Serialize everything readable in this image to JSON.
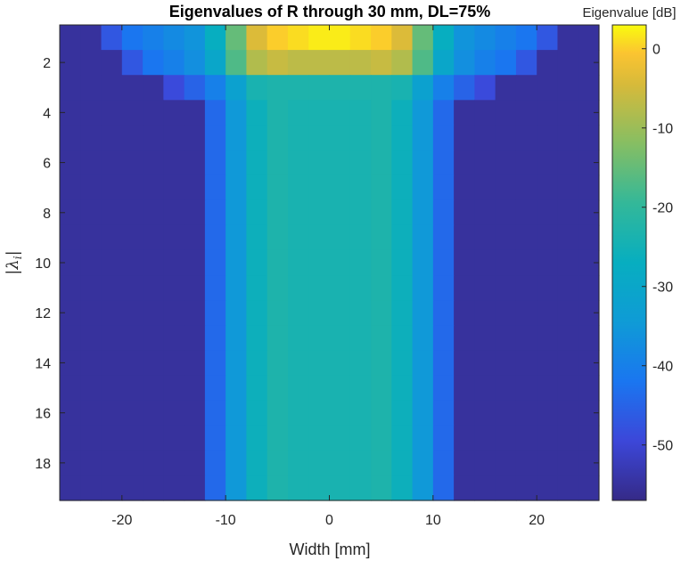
{
  "chart_data": {
    "type": "heatmap",
    "title": "Eigenvalues of R through 30 mm, DL=75%",
    "xlabel": "Width [mm]",
    "ylabel": "|λ_i|",
    "colorbar_label": "Eigenvalue [dB]",
    "xlim": [
      -26,
      26
    ],
    "ylim": [
      0.5,
      19.5
    ],
    "clim": [
      -57,
      3
    ],
    "y_reversed": true,
    "colormap": "parula",
    "xticks": [
      -20,
      -10,
      0,
      10,
      20
    ],
    "xtick_labels": [
      "-20",
      "-10",
      "0",
      "10",
      "20"
    ],
    "yticks": [
      2,
      4,
      6,
      8,
      10,
      12,
      14,
      16,
      18
    ],
    "ytick_labels": [
      "2",
      "4",
      "6",
      "8",
      "10",
      "12",
      "14",
      "16",
      "18"
    ],
    "cticks": [
      0,
      -10,
      -20,
      -30,
      -40,
      -50
    ],
    "ctick_labels": [
      "0",
      "-10",
      "-20",
      "-30",
      "-40",
      "-50"
    ],
    "x": [
      -25,
      -23,
      -21,
      -19,
      -17,
      -15,
      -13,
      -11,
      -9,
      -7,
      -5,
      -3,
      -1,
      1,
      3,
      5,
      7,
      9,
      11,
      13,
      15,
      17,
      19,
      21,
      23,
      25
    ],
    "y": [
      1,
      2,
      3,
      4,
      5,
      6,
      7,
      8,
      9,
      10,
      11,
      12,
      13,
      14,
      15,
      16,
      17,
      18,
      19
    ],
    "rows": [
      [
        -55,
        -55,
        -47,
        -42,
        -40,
        -38,
        -36,
        -27,
        -15,
        -4,
        0,
        1,
        2,
        2,
        1,
        0,
        -4,
        -15,
        -27,
        -36,
        -38,
        -40,
        -42,
        -47,
        -55,
        -55
      ],
      [
        -55,
        -55,
        -55,
        -47,
        -42,
        -40,
        -37,
        -30,
        -17,
        -8,
        -6,
        -7,
        -7,
        -7,
        -7,
        -6,
        -8,
        -17,
        -30,
        -37,
        -40,
        -42,
        -47,
        -55,
        -55,
        -55
      ],
      [
        -55,
        -55,
        -55,
        -55,
        -55,
        -49,
        -45,
        -40,
        -32,
        -24,
        -23,
        -23,
        -23,
        -23,
        -23,
        -23,
        -24,
        -32,
        -40,
        -45,
        -49,
        -55,
        -55,
        -55,
        -55,
        -55
      ],
      [
        -55,
        -55,
        -55,
        -55,
        -55,
        -55,
        -55,
        -44,
        -35,
        -26,
        -23,
        -24,
        -24,
        -24,
        -24,
        -23,
        -26,
        -35,
        -44,
        -55,
        -55,
        -55,
        -55,
        -55,
        -55,
        -55
      ],
      [
        -55,
        -55,
        -55,
        -55,
        -55,
        -55,
        -55,
        -44,
        -35,
        -26,
        -23,
        -24,
        -24,
        -24,
        -24,
        -23,
        -26,
        -35,
        -44,
        -55,
        -55,
        -55,
        -55,
        -55,
        -55,
        -55
      ],
      [
        -55,
        -55,
        -55,
        -55,
        -55,
        -55,
        -55,
        -44,
        -35,
        -26,
        -23,
        -24,
        -24,
        -24,
        -24,
        -23,
        -26,
        -35,
        -44,
        -55,
        -55,
        -55,
        -55,
        -55,
        -55,
        -55
      ],
      [
        -55,
        -55,
        -55,
        -55,
        -55,
        -55,
        -55,
        -44,
        -35,
        -26,
        -23,
        -24,
        -24,
        -24,
        -24,
        -23,
        -26,
        -35,
        -44,
        -55,
        -55,
        -55,
        -55,
        -55,
        -55,
        -55
      ],
      [
        -55,
        -55,
        -55,
        -55,
        -55,
        -55,
        -55,
        -44,
        -35,
        -26,
        -23,
        -24,
        -24,
        -24,
        -24,
        -23,
        -26,
        -35,
        -44,
        -55,
        -55,
        -55,
        -55,
        -55,
        -55,
        -55
      ],
      [
        -55,
        -55,
        -55,
        -55,
        -55,
        -55,
        -55,
        -44,
        -35,
        -26,
        -23,
        -24,
        -24,
        -24,
        -24,
        -23,
        -26,
        -35,
        -44,
        -55,
        -55,
        -55,
        -55,
        -55,
        -55,
        -55
      ],
      [
        -55,
        -55,
        -55,
        -55,
        -55,
        -55,
        -55,
        -44,
        -35,
        -26,
        -23,
        -24,
        -24,
        -24,
        -24,
        -23,
        -26,
        -35,
        -44,
        -55,
        -55,
        -55,
        -55,
        -55,
        -55,
        -55
      ],
      [
        -55,
        -55,
        -55,
        -55,
        -55,
        -55,
        -55,
        -44,
        -35,
        -26,
        -23,
        -24,
        -24,
        -24,
        -24,
        -23,
        -26,
        -35,
        -44,
        -55,
        -55,
        -55,
        -55,
        -55,
        -55,
        -55
      ],
      [
        -55,
        -55,
        -55,
        -55,
        -55,
        -55,
        -55,
        -44,
        -35,
        -26,
        -23,
        -24,
        -24,
        -24,
        -24,
        -23,
        -26,
        -35,
        -44,
        -55,
        -55,
        -55,
        -55,
        -55,
        -55,
        -55
      ],
      [
        -55,
        -55,
        -55,
        -55,
        -55,
        -55,
        -55,
        -44,
        -35,
        -26,
        -23,
        -24,
        -24,
        -24,
        -24,
        -23,
        -26,
        -35,
        -44,
        -55,
        -55,
        -55,
        -55,
        -55,
        -55,
        -55
      ],
      [
        -55,
        -55,
        -55,
        -55,
        -55,
        -55,
        -55,
        -44,
        -35,
        -26,
        -23,
        -24,
        -24,
        -24,
        -24,
        -23,
        -26,
        -35,
        -44,
        -55,
        -55,
        -55,
        -55,
        -55,
        -55,
        -55
      ],
      [
        -55,
        -55,
        -55,
        -55,
        -55,
        -55,
        -55,
        -44,
        -35,
        -26,
        -23,
        -24,
        -24,
        -24,
        -24,
        -23,
        -26,
        -35,
        -44,
        -55,
        -55,
        -55,
        -55,
        -55,
        -55,
        -55
      ],
      [
        -55,
        -55,
        -55,
        -55,
        -55,
        -55,
        -55,
        -44,
        -35,
        -26,
        -23,
        -24,
        -24,
        -24,
        -24,
        -23,
        -26,
        -35,
        -44,
        -55,
        -55,
        -55,
        -55,
        -55,
        -55,
        -55
      ],
      [
        -55,
        -55,
        -55,
        -55,
        -55,
        -55,
        -55,
        -44,
        -35,
        -26,
        -23,
        -24,
        -24,
        -24,
        -24,
        -23,
        -26,
        -35,
        -44,
        -55,
        -55,
        -55,
        -55,
        -55,
        -55,
        -55
      ],
      [
        -55,
        -55,
        -55,
        -55,
        -55,
        -55,
        -55,
        -44,
        -35,
        -26,
        -23,
        -24,
        -24,
        -24,
        -24,
        -23,
        -26,
        -35,
        -44,
        -55,
        -55,
        -55,
        -55,
        -55,
        -55,
        -55
      ],
      [
        -55,
        -55,
        -55,
        -55,
        -55,
        -55,
        -55,
        -44,
        -35,
        -26,
        -23,
        -24,
        -24,
        -24,
        -24,
        -23,
        -26,
        -35,
        -44,
        -55,
        -55,
        -55,
        -55,
        -55,
        -55,
        -55
      ]
    ]
  }
}
